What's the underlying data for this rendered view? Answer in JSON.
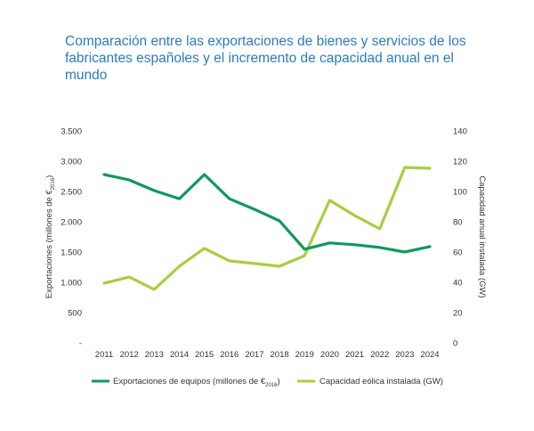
{
  "title_line1": "Comparación entre las exportaciones de bienes y servicios de los",
  "title_line2": "fabricantes españoles y el incremento de capacidad anual en el mundo",
  "chart_data": {
    "type": "line",
    "title": "Comparación entre las exportaciones de bienes y servicios de los fabricantes españoles y el incremento de capacidad anual en el mundo",
    "x": [
      "2011",
      "2012",
      "2013",
      "2014",
      "2015",
      "2016",
      "2017",
      "2018",
      "2019",
      "2020",
      "2021",
      "2022",
      "2023",
      "2024"
    ],
    "ylabel_left": "Exportaciones (millones de €",
    "ylabel_left_sub": "2016",
    "ylabel_left_close": ")",
    "ylabel_right": "Capacidad anual instalada (GW)",
    "ylim_left": [
      0,
      3500
    ],
    "ylim_right": [
      0,
      140
    ],
    "yticks_left": [
      "-",
      "500",
      "1.000",
      "1.500",
      "2.000",
      "2.500",
      "3.000",
      "3.500"
    ],
    "yticks_right": [
      "0",
      "20",
      "40",
      "60",
      "80",
      "100",
      "120",
      "140"
    ],
    "grid": false,
    "legend_position": "bottom",
    "series": [
      {
        "name": "Exportaciones de equipos (millones de €",
        "name_sub": "2016",
        "name_close": ")",
        "axis": "left",
        "color": "#0f9a5c",
        "values": [
          2780,
          2690,
          2515,
          2380,
          2780,
          2380,
          2205,
          2015,
          1545,
          1650,
          1620,
          1575,
          1500,
          1590
        ]
      },
      {
        "name": "Capacidad eólica instalada (GW)",
        "axis": "right",
        "color": "#a6cf3f",
        "values": [
          39.4,
          43.5,
          35.3,
          50.6,
          62.4,
          54.1,
          52.4,
          50.6,
          57.6,
          94.1,
          84.1,
          75.3,
          115.9,
          115.3
        ]
      }
    ]
  }
}
